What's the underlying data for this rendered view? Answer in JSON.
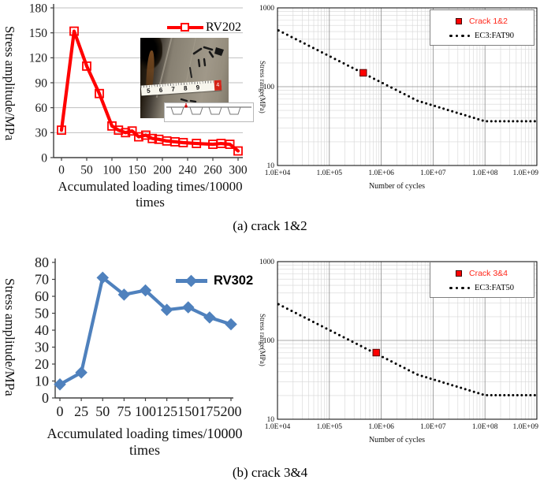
{
  "captions": {
    "a": "(a) crack 1&2",
    "b": "(b) crack 3&4"
  },
  "inset": {
    "tape_numbers": "5 6 7 8 9",
    "tape_end_label": "4"
  },
  "chart_data": [
    {
      "id": "rv202",
      "type": "line",
      "legend": "RV202",
      "color": "#FF0000",
      "marker": "open-square",
      "xlabel": "Accumulated loading times/10000 times",
      "ylabel": "Stress amplitude/MPa",
      "x_tick_labels": [
        "0",
        "50",
        "100",
        "150",
        "200",
        "240",
        "260",
        "300"
      ],
      "x_tick_values": [
        0,
        50,
        100,
        150,
        200,
        240,
        260,
        300
      ],
      "y_ticks": [
        0,
        30,
        60,
        90,
        120,
        150,
        180
      ],
      "ylim": [
        0,
        180
      ],
      "grid": true,
      "points": [
        [
          0,
          33
        ],
        [
          25,
          152
        ],
        [
          50,
          110
        ],
        [
          75,
          77
        ],
        [
          100,
          38
        ],
        [
          113,
          33
        ],
        [
          127,
          30
        ],
        [
          140,
          32
        ],
        [
          153,
          25
        ],
        [
          167,
          27
        ],
        [
          180,
          23
        ],
        [
          193,
          22
        ],
        [
          207,
          20
        ],
        [
          220,
          19
        ],
        [
          233,
          18
        ],
        [
          247,
          17
        ],
        [
          260,
          16
        ],
        [
          273,
          17
        ],
        [
          287,
          16
        ],
        [
          300,
          8
        ]
      ]
    },
    {
      "id": "sn_a",
      "type": "scatter",
      "xscale": "log",
      "yscale": "log",
      "legend_point": "Crack 1&2",
      "legend_line": "EC3:FAT90",
      "point_color": "#FF0000",
      "xlabel": "Number of cycles",
      "ylabel": "Stress range(MPa)",
      "x_tick_labels": [
        "1.0E+04",
        "1.0E+05",
        "1.0E+06",
        "1.0E+07",
        "1.0E+08",
        "1.0E+09"
      ],
      "y_tick_labels": [
        "10",
        "100",
        "1000"
      ],
      "xlog_range": [
        4,
        9
      ],
      "ylog_range": [
        1,
        3
      ],
      "curve_points": [
        [
          10000,
          526
        ],
        [
          5000000,
          66.3
        ],
        [
          100000000,
          36.4
        ],
        [
          1000000000,
          36.4
        ]
      ],
      "data_point": [
        450000,
        150
      ],
      "n_dots": 60
    },
    {
      "id": "rv302",
      "type": "line",
      "legend": "RV302",
      "color": "#4F81BD",
      "marker": "diamond",
      "xlabel": "Accumulated loading times/10000 times",
      "ylabel": "Stress amplitude/MPa",
      "x_tick_labels": [
        "0",
        "25",
        "50",
        "75",
        "100",
        "125",
        "150",
        "175",
        "200"
      ],
      "x_tick_values": [
        0,
        25,
        50,
        75,
        100,
        125,
        150,
        175,
        200
      ],
      "y_ticks": [
        0,
        10,
        20,
        30,
        40,
        50,
        60,
        70,
        80
      ],
      "ylim": [
        0,
        80
      ],
      "grid": false,
      "points": [
        [
          0,
          8
        ],
        [
          25,
          15
        ],
        [
          50,
          71
        ],
        [
          75,
          61
        ],
        [
          100,
          63.5
        ],
        [
          125,
          52
        ],
        [
          150,
          53.5
        ],
        [
          175,
          47.5
        ],
        [
          200,
          43.5
        ]
      ]
    },
    {
      "id": "sn_b",
      "type": "scatter",
      "xscale": "log",
      "yscale": "log",
      "legend_point": "Crack 3&4",
      "legend_line": "EC3:FAT50",
      "point_color": "#FF0000",
      "xlabel": "Number of cycles",
      "ylabel": "Stress range(MPa)",
      "x_tick_labels": [
        "1.0E+04",
        "1.0E+05",
        "1.0E+06",
        "1.0E+07",
        "1.0E+08",
        "1.0E+09"
      ],
      "y_tick_labels": [
        "10",
        "100",
        "1000"
      ],
      "xlog_range": [
        4,
        9
      ],
      "ylog_range": [
        1,
        3
      ],
      "curve_points": [
        [
          10000,
          292
        ],
        [
          5000000,
          36.8
        ],
        [
          100000000,
          20.2
        ],
        [
          1000000000,
          20.2
        ]
      ],
      "data_point": [
        800000,
        70
      ],
      "n_dots": 60
    }
  ]
}
